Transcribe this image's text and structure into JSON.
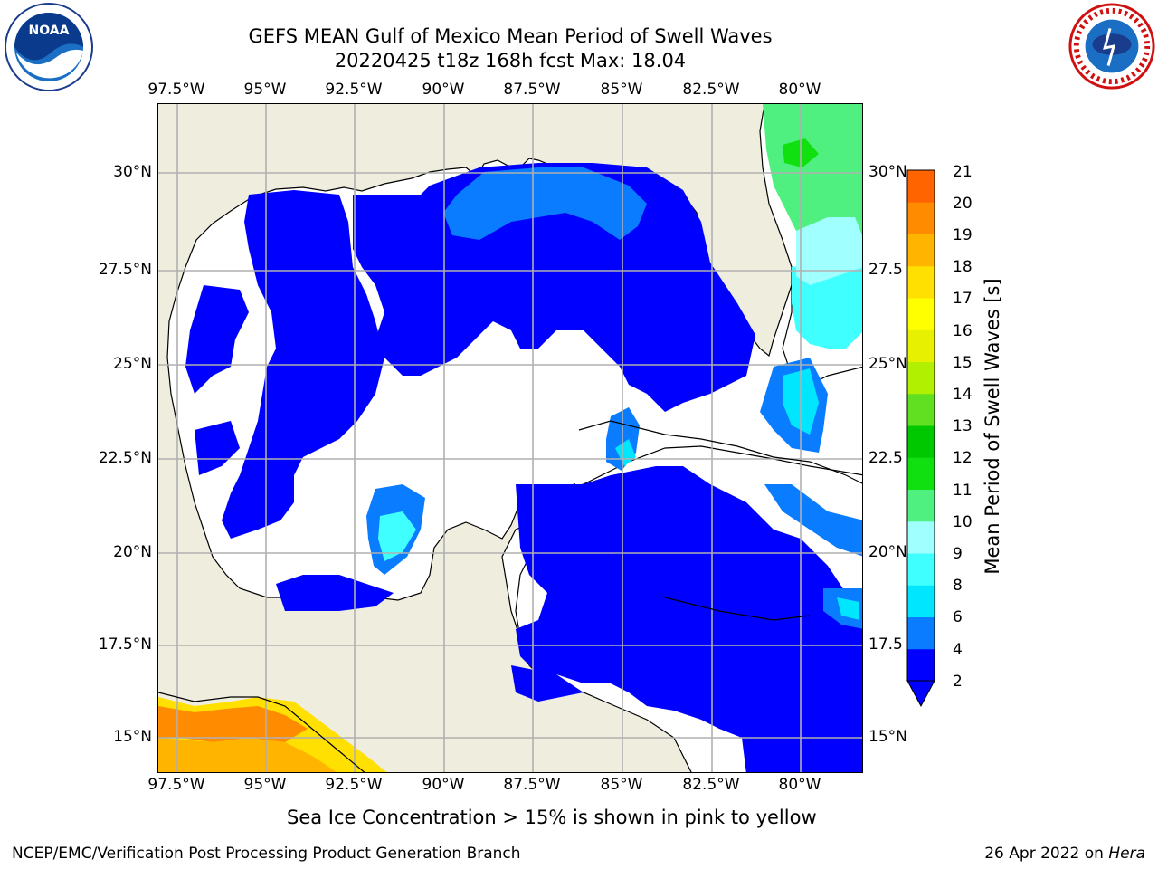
{
  "header": {
    "title_line1": "GEFS MEAN Gulf of Mexico Mean Period of Swell Waves",
    "title_line2": "20220425 t18z 168h fcst   Max: 18.04"
  },
  "map": {
    "lon_ticks": [
      "97.5°W",
      "95°W",
      "92.5°W",
      "90°W",
      "87.5°W",
      "85°W",
      "82.5°W",
      "80°W"
    ],
    "lat_ticks_left": [
      "30°N",
      "27.5°N",
      "25°N",
      "22.5°N",
      "20°N",
      "17.5°N",
      "15°N"
    ],
    "lat_ticks_right": [
      "30°N",
      "27.5",
      "25°N",
      "22.5",
      "20°N",
      "17.5",
      "15°N"
    ],
    "land_color": "#efedde",
    "ocean_no_data_color": "#ffffff",
    "grid": true
  },
  "colorbar": {
    "label": "Mean Period of Swell Waves [s]",
    "ticks": [
      "21",
      "20",
      "19",
      "18",
      "17",
      "16",
      "15",
      "14",
      "13",
      "12",
      "11",
      "10",
      "9",
      "8",
      "6",
      "4",
      "2"
    ],
    "colors": [
      "#0000ff",
      "#0a7cff",
      "#00e6ff",
      "#40ffff",
      "#a0ffff",
      "#50f080",
      "#10e010",
      "#00c800",
      "#60e020",
      "#b0f000",
      "#e6f000",
      "#ffff00",
      "#ffe000",
      "#ffb400",
      "#ff8c00",
      "#ff6400",
      "#ff3c00",
      "#ff0000"
    ],
    "extend": "min"
  },
  "note": "Sea Ice Concentration > 15% is shown in pink to yellow",
  "footer": {
    "left": "NCEP/EMC/Verification Post Processing Product Generation Branch",
    "right_date": "26 Apr 2022 on",
    "right_host": "Hera"
  },
  "logos": {
    "left": "noaa-logo",
    "right": "nws-logo"
  }
}
